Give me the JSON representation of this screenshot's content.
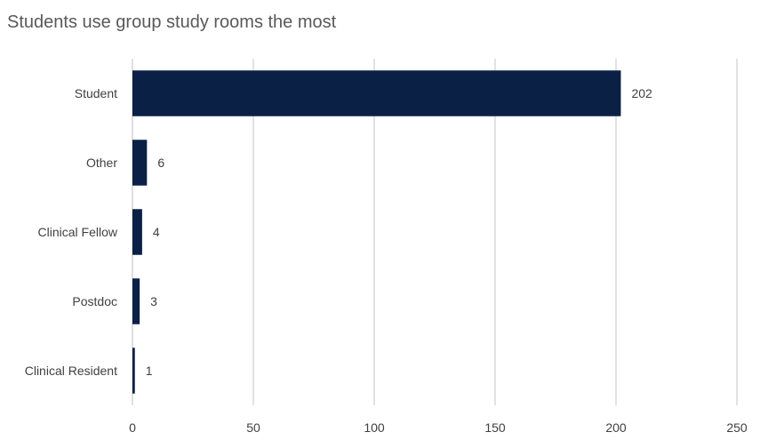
{
  "chart_data": {
    "type": "bar",
    "orientation": "horizontal",
    "title": "Students use group study rooms the most",
    "xlabel": "",
    "ylabel": "",
    "categories": [
      "Student",
      "Other",
      "Clinical Fellow",
      "Postdoc",
      "Clinical Resident"
    ],
    "values": [
      202,
      6,
      4,
      3,
      1
    ],
    "xlim": [
      0,
      250
    ],
    "xticks": [
      0,
      50,
      100,
      150,
      200,
      250
    ],
    "xtick_labels": [
      "0",
      "50",
      "100",
      "150",
      "200",
      "250"
    ],
    "grid": "vertical",
    "legend": "none",
    "bar_color": "#0b2045",
    "grid_color": "#d9d9d9"
  }
}
